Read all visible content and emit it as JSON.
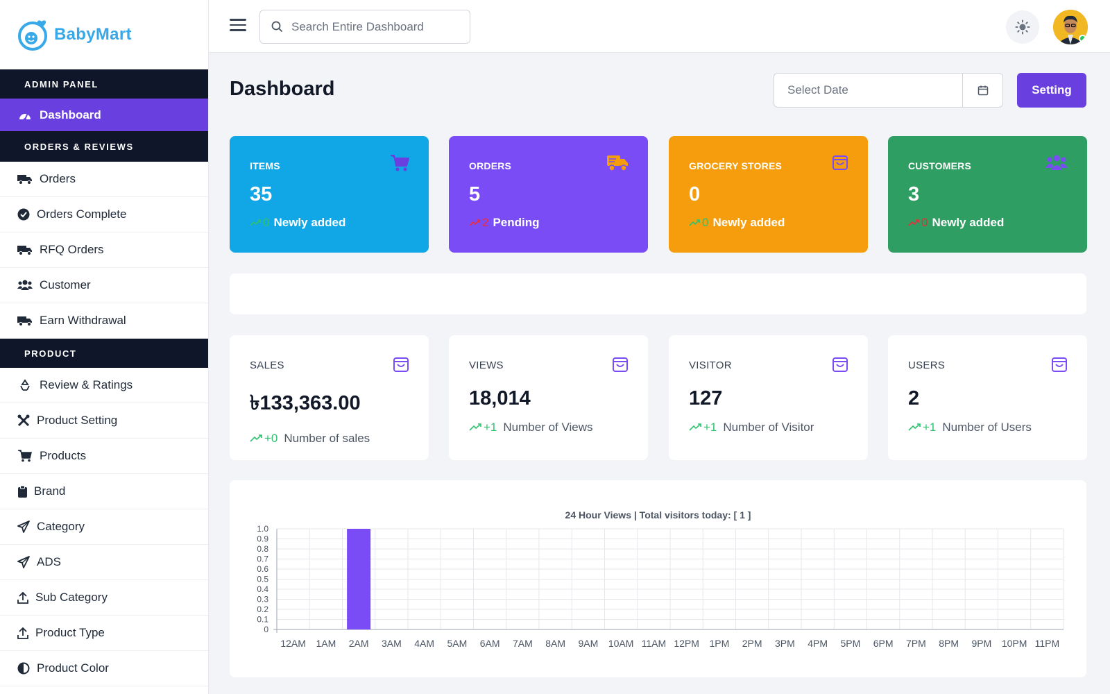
{
  "brand": {
    "name_part1": "Baby",
    "name_part2": "Mart"
  },
  "sidebar": {
    "sections": [
      {
        "title": "ADMIN PANEL",
        "items": [
          {
            "label": "Dashboard",
            "icon": "gauge-icon",
            "active": true
          }
        ]
      },
      {
        "title": "ORDERS & REVIEWS",
        "items": [
          {
            "label": "Orders",
            "icon": "truck-icon"
          },
          {
            "label": "Orders Complete",
            "icon": "check-circle-icon"
          },
          {
            "label": "RFQ Orders",
            "icon": "truck-icon"
          },
          {
            "label": "Customer",
            "icon": "users-icon"
          },
          {
            "label": "Earn Withdrawal",
            "icon": "truck-icon"
          }
        ]
      },
      {
        "title": "PRODUCT",
        "items": [
          {
            "label": "Review & Ratings",
            "icon": "recycle-icon"
          },
          {
            "label": "Product Setting",
            "icon": "tools-icon"
          },
          {
            "label": "Products",
            "icon": "cart-icon"
          },
          {
            "label": "Brand",
            "icon": "clipboard-icon"
          },
          {
            "label": "Category",
            "icon": "paper-plane-icon"
          },
          {
            "label": "ADS",
            "icon": "paper-plane-icon"
          },
          {
            "label": "Sub Category",
            "icon": "upload-icon"
          },
          {
            "label": "Product Type",
            "icon": "upload-icon"
          },
          {
            "label": "Product Color",
            "icon": "half-circle-icon"
          }
        ]
      }
    ]
  },
  "topbar": {
    "search_placeholder": "Search Entire Dashboard"
  },
  "main": {
    "title": "Dashboard",
    "date_placeholder": "Select Date",
    "setting_label": "Setting"
  },
  "stat_cards": [
    {
      "label": "ITEMS",
      "value": "35",
      "trend": "0",
      "trend_dir": "up",
      "note": "Newly added",
      "color": "#11a6e6",
      "icon": "cart-icon"
    },
    {
      "label": "ORDERS",
      "value": "5",
      "trend": "2",
      "trend_dir": "down",
      "note": "Pending",
      "color": "#7a4cf6",
      "icon": "truck-icon"
    },
    {
      "label": "GROCERY STORES",
      "value": "0",
      "trend": "0",
      "trend_dir": "up",
      "note": "Newly added",
      "color": "#f59d0c",
      "icon": "bag-icon"
    },
    {
      "label": "CUSTOMERS",
      "value": "3",
      "trend": "0",
      "trend_dir": "down",
      "note": "Newly added",
      "color": "#2e9e63",
      "icon": "users-icon"
    }
  ],
  "metric_cards": [
    {
      "label": "SALES",
      "value": "৳133,363.00",
      "trend": "+0",
      "note": "Number of sales",
      "icon": "bag-icon"
    },
    {
      "label": "VIEWS",
      "value": "18,014",
      "trend": "+1",
      "note": "Number of Views",
      "icon": "bag-icon"
    },
    {
      "label": "VISITOR",
      "value": "127",
      "trend": "+1",
      "note": "Number of Visitor",
      "icon": "bag-icon"
    },
    {
      "label": "USERS",
      "value": "2",
      "trend": "+1",
      "note": "Number of Users",
      "icon": "bag-icon"
    }
  ],
  "colors": {
    "accent": "#6a3fe0",
    "sidebar_heading_bg": "#0f1629",
    "bar": "#7a4cf6"
  },
  "chart_data": {
    "type": "bar",
    "title": "24 Hour Views | Total visitors today: [ 1 ]",
    "categories": [
      "12AM",
      "1AM",
      "2AM",
      "3AM",
      "4AM",
      "5AM",
      "6AM",
      "7AM",
      "8AM",
      "9AM",
      "10AM",
      "11AM",
      "12PM",
      "1PM",
      "2PM",
      "3PM",
      "4PM",
      "5PM",
      "6PM",
      "7PM",
      "8PM",
      "9PM",
      "10PM",
      "11PM"
    ],
    "values": [
      0,
      0,
      1,
      0,
      0,
      0,
      0,
      0,
      0,
      0,
      0,
      0,
      0,
      0,
      0,
      0,
      0,
      0,
      0,
      0,
      0,
      0,
      0,
      0
    ],
    "yticks": [
      "0",
      "0.1",
      "0.2",
      "0.3",
      "0.4",
      "0.5",
      "0.6",
      "0.7",
      "0.8",
      "0.9",
      "1.0"
    ],
    "ylim": [
      0,
      1
    ],
    "grid": true,
    "legend": "none"
  }
}
